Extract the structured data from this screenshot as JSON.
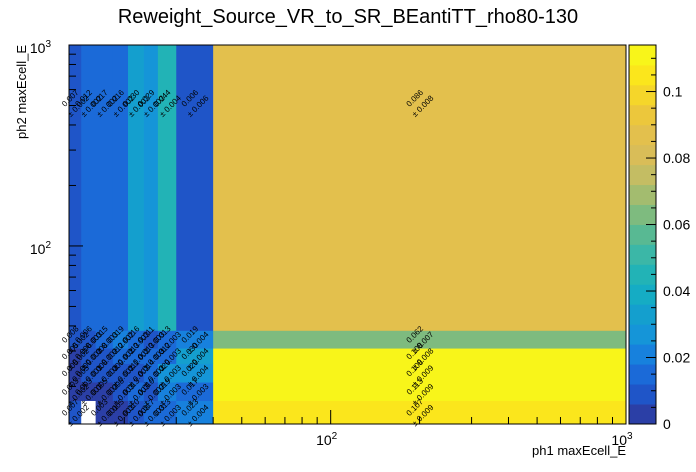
{
  "chart_data": {
    "type": "heatmap",
    "title": "Reweight_Source_VR_to_SR_BEantiTT_rho80-130",
    "xlabel": "ph1 maxEcell_E",
    "ylabel": "ph2 maxEcell_E",
    "x_scale": "log",
    "y_scale": "log",
    "xlim": [
      13,
      1000
    ],
    "ylim": [
      13,
      1000
    ],
    "x_ticks": [
      {
        "value": 100,
        "base": "10",
        "exp": "2"
      },
      {
        "value": 1000,
        "base": "10",
        "exp": "3"
      }
    ],
    "y_ticks": [
      {
        "value": 100,
        "base": "10",
        "exp": "2"
      },
      {
        "value": 1000,
        "base": "10",
        "exp": "3"
      }
    ],
    "x_edges": [
      13,
      14.3,
      16,
      18.3,
      20.6,
      23.3,
      26,
      30,
      40,
      1000
    ],
    "y_edges": [
      13,
      17,
      21,
      26,
      31,
      38,
      1000
    ],
    "values": [
      [
        0.007,
        0.002,
        0.003,
        0.005,
        0.01,
        0.017,
        0.013,
        0.023,
        0.107
      ],
      [
        0.003,
        0.003,
        0.005,
        0.008,
        0.013,
        0.01,
        0.019,
        0.017,
        0.113
      ],
      [
        0.005,
        0.009,
        0.008,
        0.009,
        0.011,
        0.014,
        0.029,
        0.029,
        0.108
      ],
      [
        0.005,
        0.006,
        0.008,
        0.012,
        0.013,
        0.013,
        0.012,
        0.03,
        0.108
      ],
      [
        0.008,
        0.006,
        0.015,
        0.019,
        0.016,
        0.011,
        0.013,
        0.019,
        0.062
      ],
      [
        0.007,
        0.012,
        0.017,
        0.016,
        0.03,
        0.029,
        0.044,
        0.006,
        0.086
      ]
    ],
    "errors": [
      [
        0.002,
        0.001,
        0.001,
        0.003,
        0.008,
        0.003,
        0.003,
        0.004,
        0.009
      ],
      [
        0.002,
        0.001,
        0.002,
        0.003,
        0.003,
        0.002,
        0.003,
        0.003,
        0.009
      ],
      [
        0.003,
        0.001,
        0.002,
        0.002,
        0.002,
        0.002,
        0.003,
        0.004,
        0.009
      ],
      [
        0.002,
        0.002,
        0.002,
        0.002,
        0.002,
        0.003,
        0.003,
        0.004,
        0.008
      ],
      [
        0.002,
        0.003,
        0.003,
        0.002,
        0.003,
        0.003,
        0.003,
        0.004,
        0.007
      ],
      [
        0.002,
        0.002,
        0.002,
        0.002,
        0.002,
        0.002,
        0.004,
        0.006,
        0.008
      ]
    ],
    "empty_cells": [
      [
        0,
        1
      ]
    ],
    "colorbar": {
      "range": [
        0,
        0.114
      ],
      "ticks": [
        {
          "value": 0,
          "label": "0"
        },
        {
          "value": 0.02,
          "label": "0.02"
        },
        {
          "value": 0.04,
          "label": "0.04"
        },
        {
          "value": 0.06,
          "label": "0.06"
        },
        {
          "value": 0.08,
          "label": "0.08"
        },
        {
          "value": 0.1,
          "label": "0.1"
        }
      ],
      "palette": [
        "#2b3fa6",
        "#1f55c8",
        "#1b6ad8",
        "#1781dd",
        "#1595d8",
        "#149fce",
        "#15acc4",
        "#22b3b6",
        "#3bb7a7",
        "#58b993",
        "#7ebb7f",
        "#a3bc6f",
        "#c4bd63",
        "#d9bd58",
        "#e3c04d",
        "#ecc73c",
        "#f5d62a",
        "#fbe61c",
        "#f8f51a"
      ]
    }
  }
}
